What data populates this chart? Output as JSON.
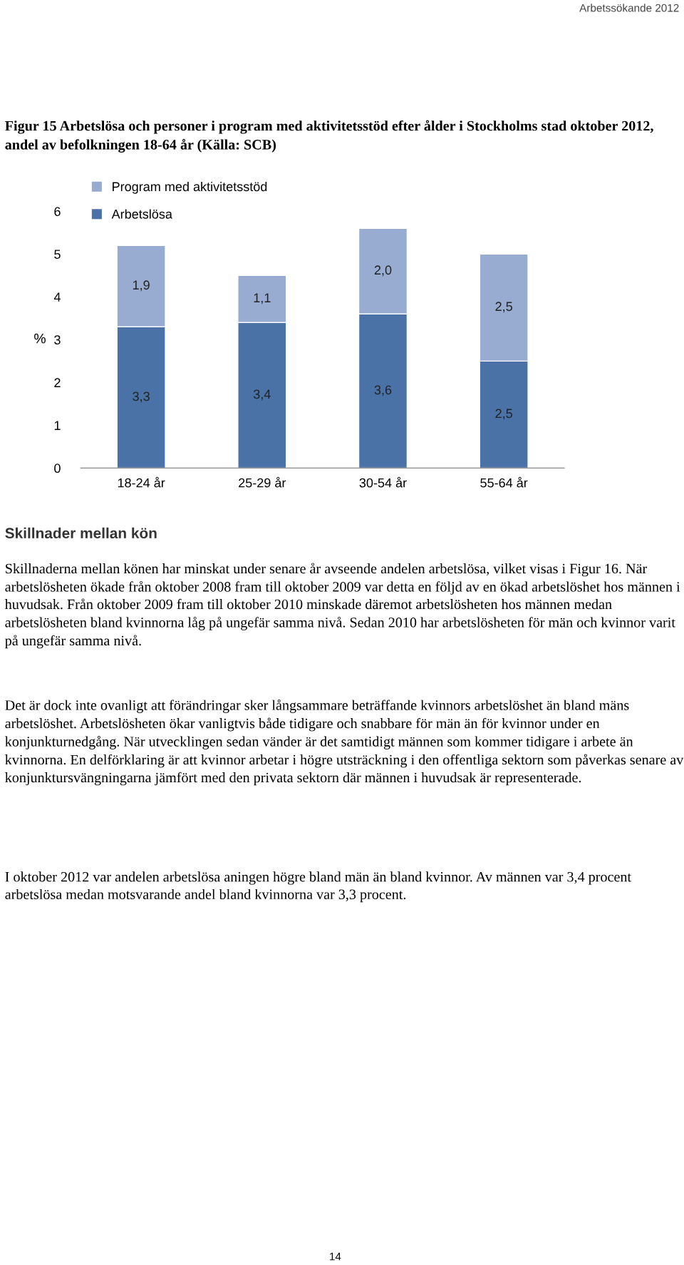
{
  "chart_data": {
    "type": "bar",
    "stacked": true,
    "title": "Figur 15 Arbetslösa och personer i program med aktivitetsstöd efter ålder i Stockholms stad oktober 2012, andel av befolkningen 18-64 år (Källa: SCB)",
    "ylabel": "%",
    "categories": [
      "18-24 år",
      "25-29 år",
      "30-54 år",
      "55-64 år"
    ],
    "series": [
      {
        "name": "Arbetslösa",
        "color": "#4a72a6",
        "values": [
          3.3,
          3.4,
          3.6,
          2.5
        ],
        "value_labels": [
          "3,3",
          "3,4",
          "3,6",
          "2,5"
        ]
      },
      {
        "name": "Program med aktivitetsstöd",
        "color": "#98abd0",
        "values": [
          1.9,
          1.1,
          2.0,
          2.5
        ],
        "value_labels": [
          "1,9",
          "1,1",
          "2,0",
          "2,5"
        ]
      }
    ],
    "ylim": [
      0,
      6
    ],
    "yticks": [
      0,
      1,
      2,
      3,
      4,
      5,
      6
    ],
    "grid": false,
    "legend": "top left",
    "annotations": [
      "Arbetssökande 2012",
      "Skillnader mellan kön",
      "Skillnaderna mellan könen har minskat under senare år avseende andelen arbetslösa, vilket visas i Figur 16. När arbetslösheten ökade från oktober 2008 fram till oktober 2009 var detta en följd av en ökad arbetslöshet hos männen i huvudsak. Från oktober 2009 fram till oktober 2010 minskade däremot arbetslösheten hos männen medan arbetslösheten bland kvinnorna låg på ungefär samma nivå. Sedan 2010 har arbetslösheten för män och kvinnor varit på ungefär samma nivå.",
      "Det är dock inte ovanligt att förändringar sker långsammare beträffande kvinnors arbetslöshet än bland mäns arbetslöshet. Arbetslösheten ökar vanligtvis både tidigare och snabbare för män än för kvinnor under en konjunkturnedgång. När utvecklingen sedan vänder är det samtidigt männen som kommer tidigare i arbete än kvinnorna. En delförklaring är att kvinnor arbetar i högre utsträckning i den offentliga sektorn som påverkas senare av konjunktursvängningarna jämfört med den privata sektorn där männen i huvudsak är representerade.",
      "I oktober 2012 var andelen arbetslösa aningen högre bland män än bland kvinnor. Av männen var 3,4 procent arbetslösa medan motsvarande andel bland kvinnorna var 3,3 procent.",
      "14"
    ]
  }
}
